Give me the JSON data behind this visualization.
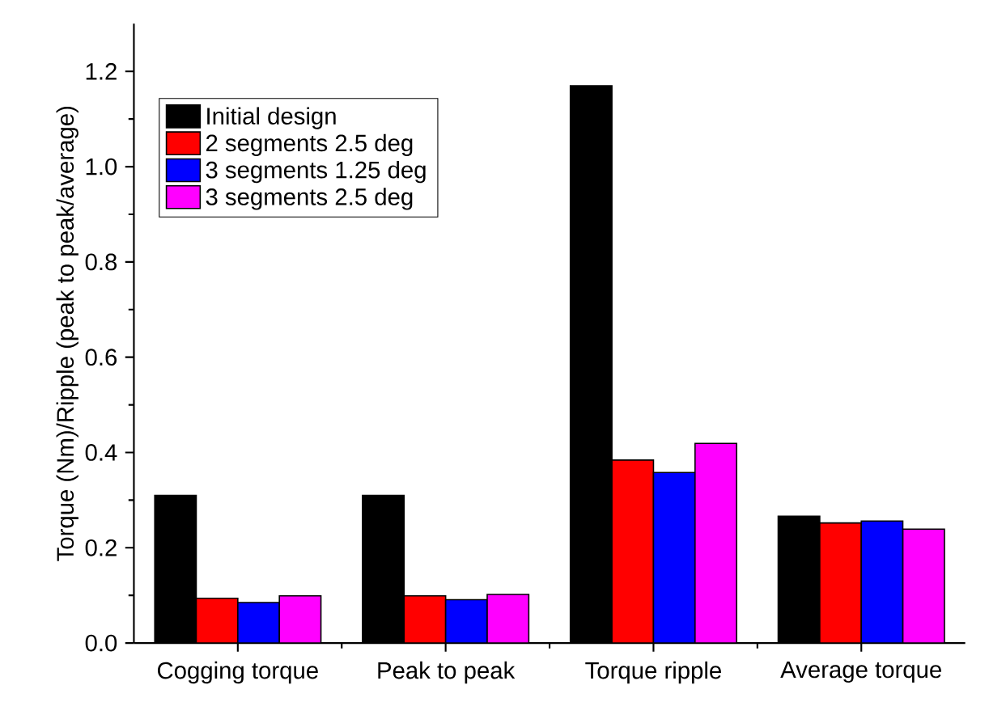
{
  "chart_data": {
    "type": "bar",
    "ylabel": "Torque (Nm)/Ripple (peak to peak/average)",
    "categories": [
      "Cogging torque",
      "Peak to peak",
      "Torque ripple",
      "Average torque"
    ],
    "series": [
      {
        "name": "Initial design",
        "color": "#000000",
        "values": [
          0.31,
          0.31,
          1.17,
          0.266
        ]
      },
      {
        "name": "2 segments 2.5 deg",
        "color": "#ff0000",
        "values": [
          0.094,
          0.099,
          0.384,
          0.252
        ]
      },
      {
        "name": "3 segments 1.25 deg",
        "color": "#0000ff",
        "values": [
          0.085,
          0.091,
          0.358,
          0.256
        ]
      },
      {
        "name": "3 segments 2.5 deg",
        "color": "#ff00ff",
        "values": [
          0.099,
          0.102,
          0.419,
          0.239
        ]
      }
    ],
    "ylim": [
      0,
      1.3
    ],
    "yticks": [
      {
        "value": 0,
        "label": "0.0"
      },
      {
        "value": 0.2,
        "label": "0.2"
      },
      {
        "value": 0.4,
        "label": "0.4"
      },
      {
        "value": 0.6,
        "label": "0.6"
      },
      {
        "value": 0.8,
        "label": "0.8"
      },
      {
        "value": 1.0,
        "label": "1.0"
      },
      {
        "value": 1.2,
        "label": "1.2"
      }
    ],
    "legend": "top left"
  }
}
